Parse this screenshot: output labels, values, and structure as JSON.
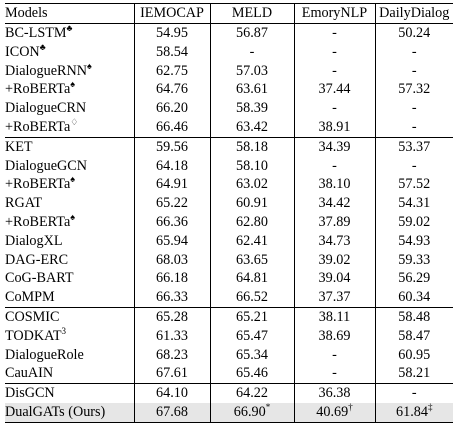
{
  "columns": [
    "Models",
    "IEMOCAP",
    "MELD",
    "EmoryNLP",
    "DailyDialog"
  ],
  "groups": [
    [
      {
        "model": "BC-LSTM",
        "mark": "♣",
        "indent": false,
        "values": [
          "54.95",
          "56.87",
          "-",
          "50.24"
        ]
      },
      {
        "model": "ICON",
        "mark": "♣",
        "indent": false,
        "values": [
          "58.54",
          "-",
          "-",
          "-"
        ]
      },
      {
        "model": "DialogueRNN",
        "mark": "♠",
        "indent": false,
        "values": [
          "62.75",
          "57.03",
          "-",
          "-"
        ]
      },
      {
        "model": "+RoBERTa",
        "mark": "♠",
        "indent": true,
        "values": [
          "64.76",
          "63.61",
          "37.44",
          "57.32"
        ]
      },
      {
        "model": "DialogueCRN",
        "mark": "",
        "indent": false,
        "values": [
          "66.20",
          "58.39",
          "-",
          "-"
        ]
      },
      {
        "model": "+RoBERTa",
        "mark": "♢",
        "indent": true,
        "values": [
          "66.46",
          "63.42",
          "38.91",
          "-"
        ]
      }
    ],
    [
      {
        "model": "KET",
        "mark": "",
        "indent": false,
        "values": [
          "59.56",
          "58.18",
          "34.39",
          "53.37"
        ]
      },
      {
        "model": "DialogueGCN",
        "mark": "",
        "indent": false,
        "values": [
          "64.18",
          "58.10",
          "-",
          "-"
        ]
      },
      {
        "model": "+RoBERTa",
        "mark": "♠",
        "indent": true,
        "values": [
          "64.91",
          "63.02",
          "38.10",
          "57.52"
        ]
      },
      {
        "model": "RGAT",
        "mark": "",
        "indent": false,
        "values": [
          "65.22",
          "60.91",
          "34.42",
          "54.31"
        ]
      },
      {
        "model": "+RoBERTa",
        "mark": "♠",
        "indent": true,
        "values": [
          "66.36",
          "62.80",
          "37.89",
          "59.02"
        ]
      },
      {
        "model": "DialogXL",
        "mark": "",
        "indent": false,
        "values": [
          "65.94",
          "62.41",
          "34.73",
          "54.93"
        ]
      },
      {
        "model": "DAG-ERC",
        "mark": "",
        "indent": false,
        "values": [
          "68.03",
          "63.65",
          "39.02",
          "59.33"
        ]
      },
      {
        "model": "CoG-BART",
        "mark": "",
        "indent": false,
        "values": [
          "66.18",
          "64.81",
          "39.04",
          "56.29"
        ]
      },
      {
        "model": "CoMPM",
        "mark": "",
        "indent": false,
        "values": [
          "66.33",
          "66.52",
          "37.37",
          "60.34"
        ]
      }
    ],
    [
      {
        "model": "COSMIC",
        "mark": "",
        "indent": false,
        "values": [
          "65.28",
          "65.21",
          "38.11",
          "58.48"
        ]
      },
      {
        "model": "TODKAT",
        "mark": "3",
        "indent": false,
        "values": [
          "61.33",
          "65.47",
          "38.69",
          "58.47"
        ]
      },
      {
        "model": "DialogueRole",
        "mark": "",
        "indent": false,
        "values": [
          "68.23",
          "65.34",
          "-",
          "60.95"
        ],
        "bold": [
          true,
          false,
          false,
          false
        ]
      },
      {
        "model": "CauAIN",
        "mark": "",
        "indent": false,
        "values": [
          "67.61",
          "65.46",
          "-",
          "58.21"
        ]
      }
    ],
    [
      {
        "model": "DisGCN",
        "mark": "",
        "indent": false,
        "values": [
          "64.10",
          "64.22",
          "36.38",
          "-"
        ]
      },
      {
        "model": "DualGATs (Ours)",
        "mark": "",
        "indent": false,
        "highlight": true,
        "values": [
          "67.68",
          "66.90",
          "40.69",
          "61.84"
        ],
        "bold": [
          false,
          true,
          true,
          true
        ],
        "value_marks": [
          "",
          "*",
          "†",
          "‡"
        ]
      }
    ]
  ]
}
